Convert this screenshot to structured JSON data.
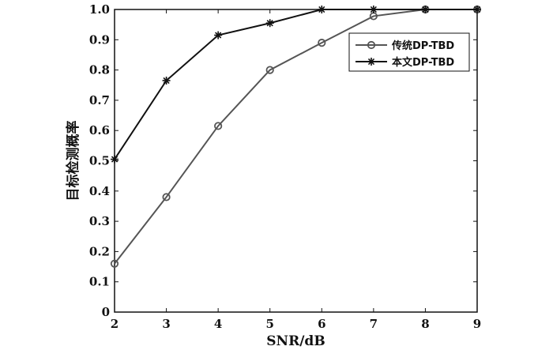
{
  "chart_data": {
    "type": "line",
    "xlabel": "SNR/dB",
    "ylabel": "目标检测概率",
    "xlim": [
      2,
      9
    ],
    "ylim": [
      0,
      1
    ],
    "xticks": [
      2,
      3,
      4,
      5,
      6,
      7,
      8,
      9
    ],
    "yticks": [
      "0",
      "0.1",
      "0.2",
      "0.3",
      "0.4",
      "0.5",
      "0.6",
      "0.7",
      "0.8",
      "0.9",
      "1.0"
    ],
    "grid": false,
    "legend_position": "top-right",
    "x": [
      2,
      3,
      4,
      5,
      6,
      7,
      8,
      9
    ],
    "series": [
      {
        "name": "传统DP-TBD",
        "marker": "circle",
        "color": "#555555",
        "values": [
          0.16,
          0.38,
          0.615,
          0.8,
          0.89,
          0.978,
          1.0,
          1.0
        ]
      },
      {
        "name": "本文DP-TBD",
        "marker": "asterisk",
        "color": "#111111",
        "values": [
          0.505,
          0.765,
          0.915,
          0.955,
          1.0,
          1.0,
          1.0,
          1.0
        ]
      }
    ]
  }
}
